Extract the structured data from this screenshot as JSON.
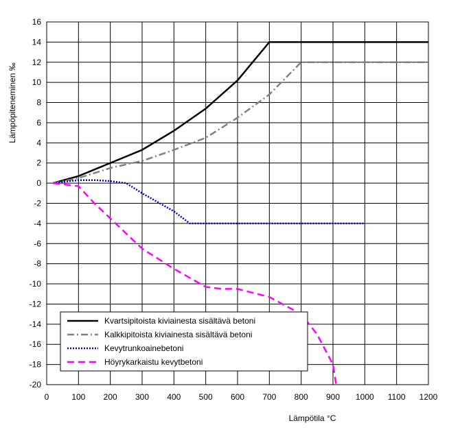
{
  "chart_data": {
    "type": "line",
    "xlabel": "Lämpötila °C",
    "ylabel": "Lämpöpiteneminen ‰",
    "xlim": [
      0,
      1200
    ],
    "ylim": [
      -20,
      16
    ],
    "xticks": [
      0,
      100,
      200,
      300,
      400,
      500,
      600,
      700,
      800,
      900,
      1000,
      1100,
      1200
    ],
    "yticks": [
      -20,
      -18,
      -16,
      -14,
      -12,
      -10,
      -8,
      -6,
      -4,
      -2,
      0,
      2,
      4,
      6,
      8,
      10,
      12,
      14,
      16
    ],
    "grid": true,
    "legend": "lower left",
    "series": [
      {
        "name": "Kvartsipitoista kiviainesta sisältävä betoni",
        "color": "#000000",
        "dash": "solid",
        "x": [
          20,
          100,
          200,
          300,
          400,
          500,
          600,
          700,
          1200
        ],
        "values": [
          0,
          0.7,
          2,
          3.3,
          5.2,
          7.4,
          10.2,
          14,
          14
        ]
      },
      {
        "name": "Kalkkipitoista kiviainesta sisältävä betoni",
        "color": "#808080",
        "dash": "dashdot",
        "x": [
          20,
          100,
          200,
          300,
          400,
          500,
          600,
          700,
          800,
          1200
        ],
        "values": [
          0,
          0.5,
          1.5,
          2.2,
          3.3,
          4.5,
          6.5,
          8.8,
          12,
          12
        ]
      },
      {
        "name": "Kevytrunkoainebetoni",
        "color": "#0000cc",
        "dash": "dotted",
        "x": [
          20,
          100,
          150,
          200,
          250,
          300,
          400,
          450,
          1000
        ],
        "values": [
          0,
          0.3,
          0.3,
          0.2,
          0,
          -1,
          -2.8,
          -4,
          -4
        ]
      },
      {
        "name": "Höyrykarkaistu kevytbetoni",
        "color": "#ff00ff",
        "dash": "dashed",
        "x": [
          20,
          100,
          150,
          200,
          300,
          400,
          500,
          550,
          600,
          700,
          800,
          850,
          900,
          910
        ],
        "values": [
          0,
          -0.3,
          -2,
          -3.5,
          -6.5,
          -8.5,
          -10.3,
          -10.5,
          -10.5,
          -11.3,
          -13,
          -15,
          -18,
          -20
        ]
      }
    ]
  }
}
